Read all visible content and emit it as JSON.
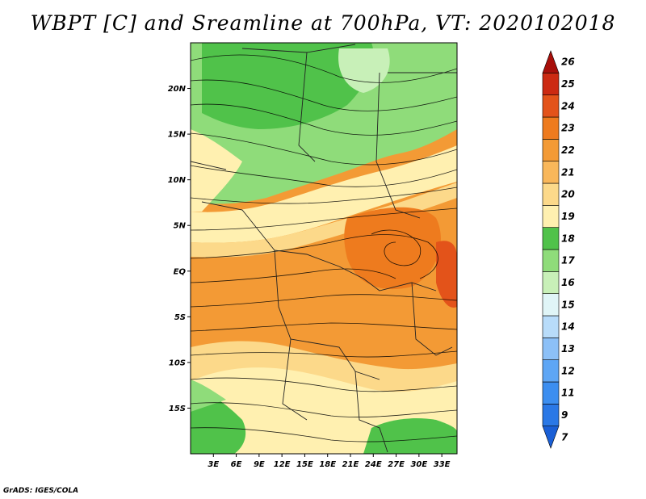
{
  "title": "WBPT [C] and Sreamline at 700hPa, VT: 2020102018",
  "credit": "GrADS: IGES/COLA",
  "map": {
    "lon_range": [
      0,
      35
    ],
    "lat_range": [
      -20,
      25
    ],
    "x_ticks": [
      "3E",
      "6E",
      "9E",
      "12E",
      "15E",
      "18E",
      "21E",
      "24E",
      "27E",
      "30E",
      "33E"
    ],
    "y_ticks": [
      "20N",
      "15N",
      "10N",
      "5N",
      "EQ",
      "5S",
      "10S",
      "15S"
    ],
    "variable": "WBPT",
    "units": "C",
    "level": "700hPa",
    "valid_time": "2020102018"
  },
  "colorbar": {
    "levels": [
      "7",
      "9",
      "11",
      "12",
      "13",
      "14",
      "15",
      "16",
      "17",
      "18",
      "19",
      "20",
      "21",
      "22",
      "23",
      "24",
      "25",
      "26"
    ],
    "colors": [
      "#1a5fd6",
      "#2a78e6",
      "#3c8ef0",
      "#5ea6f5",
      "#8cc0f7",
      "#b8dcfa",
      "#e0f5f7",
      "#c8f0b8",
      "#8fdc7a",
      "#50c24a",
      "#fff0b0",
      "#fcd98a",
      "#f9b75a",
      "#f39a35",
      "#ee7b1e",
      "#e3531a",
      "#cc2a12",
      "#a80f0a"
    ]
  }
}
